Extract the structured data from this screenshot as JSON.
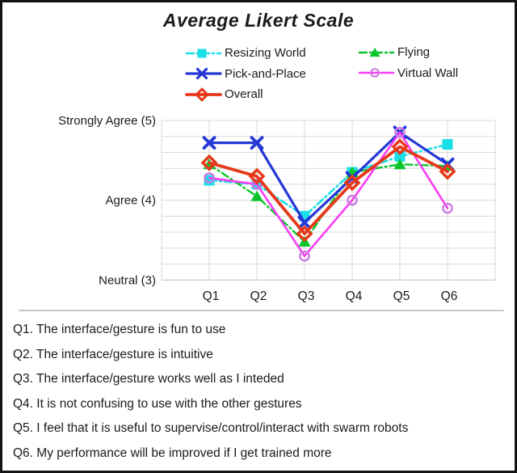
{
  "title": "Average Likert Scale",
  "chart_data": {
    "type": "line",
    "categories": [
      "Q1",
      "Q2",
      "Q3",
      "Q4",
      "Q5",
      "Q6"
    ],
    "y_axis": {
      "min": 3,
      "max": 5,
      "gridline_step": 0.2,
      "tick_labels": [
        {
          "text": "Strongly Agree (5)",
          "value": 5
        },
        {
          "text": "Agree (4)",
          "value": 4
        },
        {
          "text": "Neutral (3)",
          "value": 3
        }
      ]
    },
    "grid": "on",
    "legend_position": "top",
    "series": [
      {
        "name": "Resizing World",
        "color": "#18dfe8",
        "marker": "square",
        "marker_color": "#18dfe8",
        "line_style": "dash-dot",
        "line_width": 2.6,
        "values": [
          4.25,
          4.2,
          3.8,
          4.35,
          4.55,
          4.7
        ]
      },
      {
        "name": "Flying",
        "color": "#0ac42a",
        "marker": "triangle",
        "marker_color": "#0ac42a",
        "line_style": "dash-dot",
        "line_width": 2.4,
        "values": [
          4.45,
          4.05,
          3.48,
          4.35,
          4.45,
          4.43
        ]
      },
      {
        "name": "Pick-and-Place",
        "color": "#2438d6",
        "marker": "x",
        "marker_color": "#2438d6",
        "line_style": "solid",
        "line_width": 3.2,
        "values": [
          4.72,
          4.72,
          3.72,
          4.28,
          4.85,
          4.45
        ]
      },
      {
        "name": "Virtual Wall",
        "color": "#fb3cf5",
        "marker": "circle",
        "marker_color": "#c97ae0",
        "line_style": "solid",
        "line_width": 2.6,
        "values": [
          4.28,
          4.2,
          3.3,
          4.0,
          4.85,
          3.9
        ]
      },
      {
        "name": "Overall",
        "color": "#e6391b",
        "marker": "diamond",
        "marker_color": "#e6391b",
        "line_style": "solid",
        "line_width": 3.8,
        "values": [
          4.47,
          4.3,
          3.58,
          4.22,
          4.67,
          4.36
        ]
      }
    ],
    "legend_columns": [
      [
        "Resizing World",
        "Pick-and-Place",
        "Overall"
      ],
      [
        "Flying",
        "Virtual Wall"
      ]
    ]
  },
  "questions": [
    "Q1. The interface/gesture is fun to use",
    "Q2. The interface/gesture is intuitive",
    "Q3. The interface/gesture works well as I inteded",
    "Q4. It is not confusing to use with the other gestures",
    "Q5. I feel that it is useful to supervise/control/interact with swarm robots",
    "Q6. My performance will be improved if I get trained more"
  ],
  "colors": {
    "gridline": "#dadada",
    "axis_line": "#bfbfbf",
    "text": "#1a1a1a",
    "divider": "#c9c9c9"
  }
}
